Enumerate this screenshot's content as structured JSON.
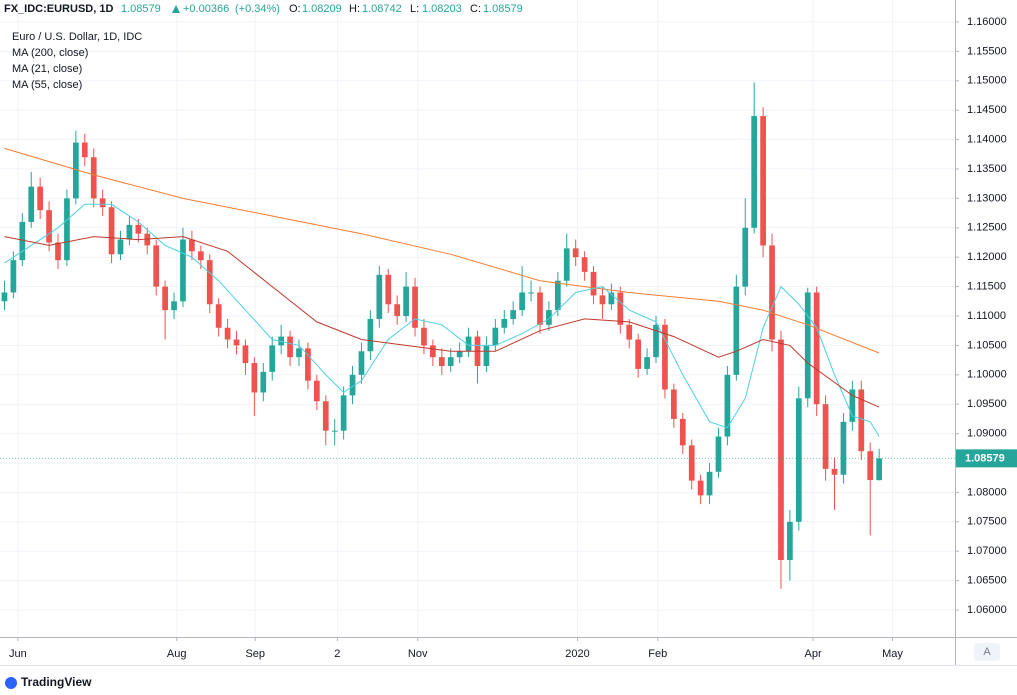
{
  "header": {
    "symbol": "FX_IDC:EURUSD, 1D",
    "last": "1.08579",
    "change": "+0.00366",
    "change_pct": "(+0.34%)",
    "open_label": "O:",
    "open": "1.08209",
    "high_label": "H:",
    "high": "1.08742",
    "low_label": "L:",
    "low": "1.08203",
    "close_label": "C:",
    "close": "1.08579"
  },
  "footer": {
    "brand": "TradingView",
    "scale_button": "A"
  },
  "chart_data": {
    "type": "candlestick",
    "legend_title": "Euro / U.S. Dollar, 1D, IDC",
    "up_color": "#26a69a",
    "down_color": "#ef5350",
    "grid": true,
    "last_price_label": "1.08579",
    "xlim": [
      -0.5,
      106.5
    ],
    "xticks": [
      {
        "value": 1.5,
        "label": "Jun"
      },
      {
        "value": 19.3,
        "label": "Aug"
      },
      {
        "value": 28.1,
        "label": "Sep"
      },
      {
        "value": 37.3,
        "label": "2"
      },
      {
        "value": 46.3,
        "label": "Nov"
      },
      {
        "value": 64.2,
        "label": "2020"
      },
      {
        "value": 73.2,
        "label": "Feb"
      },
      {
        "value": 90.6,
        "label": "Apr"
      },
      {
        "value": 99.5,
        "label": "May"
      }
    ],
    "ylim": [
      1.05541,
      1.16374
    ],
    "yticks": [
      {
        "value": 1.06,
        "label": "1.06000"
      },
      {
        "value": 1.065,
        "label": "1.06500"
      },
      {
        "value": 1.07,
        "label": "1.07000"
      },
      {
        "value": 1.075,
        "label": "1.07500"
      },
      {
        "value": 1.08,
        "label": "1.08000"
      },
      {
        "value": 1.085,
        "label": "1.08500"
      },
      {
        "value": 1.09,
        "label": "1.09000"
      },
      {
        "value": 1.095,
        "label": "1.09500"
      },
      {
        "value": 1.1,
        "label": "1.10000"
      },
      {
        "value": 1.105,
        "label": "1.10500"
      },
      {
        "value": 1.11,
        "label": "1.11000"
      },
      {
        "value": 1.115,
        "label": "1.11500"
      },
      {
        "value": 1.12,
        "label": "1.12000"
      },
      {
        "value": 1.125,
        "label": "1.12500"
      },
      {
        "value": 1.13,
        "label": "1.13000"
      },
      {
        "value": 1.135,
        "label": "1.13500"
      },
      {
        "value": 1.14,
        "label": "1.14000"
      },
      {
        "value": 1.145,
        "label": "1.14500"
      },
      {
        "value": 1.15,
        "label": "1.15000"
      },
      {
        "value": 1.155,
        "label": "1.15500"
      },
      {
        "value": 1.16,
        "label": "1.16000"
      }
    ],
    "candles": [
      [
        1.1125,
        1.116,
        1.111,
        1.114
      ],
      [
        1.114,
        1.121,
        1.113,
        1.1195
      ],
      [
        1.1195,
        1.1275,
        1.1185,
        1.126
      ],
      [
        1.126,
        1.1345,
        1.125,
        1.132
      ],
      [
        1.132,
        1.1335,
        1.1265,
        1.128
      ],
      [
        1.128,
        1.1295,
        1.121,
        1.1225
      ],
      [
        1.1225,
        1.124,
        1.118,
        1.1195
      ],
      [
        1.1195,
        1.1315,
        1.1185,
        1.13
      ],
      [
        1.13,
        1.1415,
        1.129,
        1.1395
      ],
      [
        1.1395,
        1.141,
        1.1355,
        1.137
      ],
      [
        1.137,
        1.1385,
        1.1285,
        1.13
      ],
      [
        1.13,
        1.1315,
        1.127,
        1.1285
      ],
      [
        1.1285,
        1.1295,
        1.119,
        1.1205
      ],
      [
        1.1205,
        1.1245,
        1.1195,
        1.123
      ],
      [
        1.123,
        1.127,
        1.122,
        1.1255
      ],
      [
        1.1255,
        1.1265,
        1.1225,
        1.124
      ],
      [
        1.124,
        1.125,
        1.1205,
        1.122
      ],
      [
        1.122,
        1.123,
        1.1135,
        1.115
      ],
      [
        1.115,
        1.116,
        1.106,
        1.111
      ],
      [
        1.111,
        1.114,
        1.1095,
        1.1125
      ],
      [
        1.1125,
        1.125,
        1.1115,
        1.123
      ],
      [
        1.123,
        1.1245,
        1.1195,
        1.121
      ],
      [
        1.121,
        1.122,
        1.118,
        1.1195
      ],
      [
        1.1195,
        1.1205,
        1.1105,
        1.112
      ],
      [
        1.112,
        1.113,
        1.1065,
        1.108
      ],
      [
        1.108,
        1.1095,
        1.1045,
        1.106
      ],
      [
        1.106,
        1.1075,
        1.1035,
        1.105
      ],
      [
        1.105,
        1.106,
        1.1,
        1.102
      ],
      [
        1.102,
        1.103,
        1.093,
        1.097
      ],
      [
        1.097,
        1.102,
        1.0955,
        1.1005
      ],
      [
        1.1005,
        1.1065,
        1.099,
        1.105
      ],
      [
        1.105,
        1.1085,
        1.1035,
        1.1065
      ],
      [
        1.1065,
        1.1075,
        1.1015,
        1.103
      ],
      [
        1.103,
        1.106,
        1.1015,
        1.1045
      ],
      [
        1.1045,
        1.1055,
        1.0975,
        1.099
      ],
      [
        1.099,
        1.1,
        1.094,
        1.0955
      ],
      [
        1.0955,
        1.0965,
        1.088,
        1.0905
      ],
      [
        1.0905,
        1.0925,
        1.088,
        1.0905
      ],
      [
        1.0905,
        1.098,
        1.089,
        1.0965
      ],
      [
        1.0965,
        1.1015,
        1.095,
        1.1
      ],
      [
        1.1,
        1.1055,
        1.0985,
        1.104
      ],
      [
        1.104,
        1.111,
        1.1025,
        1.1095
      ],
      [
        1.1095,
        1.1185,
        1.108,
        1.117
      ],
      [
        1.117,
        1.118,
        1.1105,
        1.112
      ],
      [
        1.112,
        1.1135,
        1.1085,
        1.11
      ],
      [
        1.11,
        1.1175,
        1.109,
        1.115
      ],
      [
        1.115,
        1.1165,
        1.1065,
        1.108
      ],
      [
        1.108,
        1.1095,
        1.1035,
        1.105
      ],
      [
        1.105,
        1.106,
        1.1015,
        1.103
      ],
      [
        1.103,
        1.1045,
        1.1,
        1.1015
      ],
      [
        1.1015,
        1.1045,
        1.1005,
        1.103
      ],
      [
        1.103,
        1.1055,
        1.102,
        1.104
      ],
      [
        1.104,
        1.108,
        1.103,
        1.1065
      ],
      [
        1.1065,
        1.1075,
        1.0985,
        1.1015
      ],
      [
        1.1015,
        1.1065,
        1.1005,
        1.105
      ],
      [
        1.105,
        1.1095,
        1.104,
        1.108
      ],
      [
        1.108,
        1.111,
        1.107,
        1.1095
      ],
      [
        1.1095,
        1.1125,
        1.1085,
        1.111
      ],
      [
        1.111,
        1.1185,
        1.11,
        1.114
      ],
      [
        1.114,
        1.116,
        1.1125,
        1.114
      ],
      [
        1.114,
        1.115,
        1.107,
        1.1085
      ],
      [
        1.1085,
        1.1125,
        1.1075,
        1.111
      ],
      [
        1.111,
        1.1175,
        1.11,
        1.116
      ],
      [
        1.116,
        1.124,
        1.115,
        1.1215
      ],
      [
        1.1215,
        1.123,
        1.1185,
        1.12
      ],
      [
        1.12,
        1.121,
        1.116,
        1.1175
      ],
      [
        1.1175,
        1.1185,
        1.112,
        1.1135
      ],
      [
        1.1135,
        1.115,
        1.1095,
        1.112
      ],
      [
        1.112,
        1.1155,
        1.111,
        1.114
      ],
      [
        1.114,
        1.115,
        1.107,
        1.1085
      ],
      [
        1.1085,
        1.1095,
        1.1045,
        1.106
      ],
      [
        1.106,
        1.107,
        1.0995,
        1.101
      ],
      [
        1.101,
        1.1045,
        1.1,
        1.103
      ],
      [
        1.103,
        1.11,
        1.102,
        1.1085
      ],
      [
        1.1085,
        1.1095,
        1.096,
        1.0975
      ],
      [
        1.0975,
        1.0985,
        1.091,
        1.0925
      ],
      [
        1.0925,
        1.0935,
        1.0865,
        1.088
      ],
      [
        1.088,
        1.089,
        1.0805,
        1.082
      ],
      [
        1.082,
        1.083,
        1.078,
        1.0795
      ],
      [
        1.0795,
        1.085,
        1.078,
        1.0835
      ],
      [
        1.0835,
        1.091,
        1.0825,
        1.0895
      ],
      [
        1.0895,
        1.1015,
        1.088,
        1.1
      ],
      [
        1.1,
        1.117,
        1.099,
        1.115
      ],
      [
        1.115,
        1.13,
        1.1135,
        1.125
      ],
      [
        1.125,
        1.1497,
        1.124,
        1.144
      ],
      [
        1.144,
        1.1455,
        1.12,
        1.122
      ],
      [
        1.122,
        1.124,
        1.104,
        1.106
      ],
      [
        1.106,
        1.1075,
        1.0636,
        1.0685
      ],
      [
        1.0685,
        1.077,
        1.065,
        1.075
      ],
      [
        1.075,
        1.098,
        1.0735,
        1.096
      ],
      [
        1.096,
        1.1148,
        1.0945,
        1.114
      ],
      [
        1.114,
        1.115,
        1.093,
        1.095
      ],
      [
        1.095,
        1.0965,
        1.082,
        1.084
      ],
      [
        1.084,
        1.086,
        1.077,
        1.083
      ],
      [
        1.083,
        1.0935,
        1.0815,
        1.092
      ],
      [
        1.092,
        1.099,
        1.0905,
        1.0975
      ],
      [
        1.0975,
        1.099,
        1.0855,
        1.087
      ],
      [
        1.087,
        1.0885,
        1.0727,
        1.0821
      ],
      [
        1.08209,
        1.08742,
        1.08203,
        1.08579
      ]
    ],
    "series": [
      {
        "name": "MA (200, close)",
        "color": "#f57c30",
        "x": [
          0,
          10,
          20,
          30,
          40,
          50,
          60,
          70,
          80,
          85,
          90,
          98
        ],
        "values": [
          1.1385,
          1.134,
          1.13,
          1.127,
          1.124,
          1.1205,
          1.116,
          1.114,
          1.1125,
          1.111,
          1.1085,
          1.1037
        ]
      },
      {
        "name": "MA (21, close)",
        "color": "#4dd0e1",
        "x": [
          0,
          3,
          6,
          9,
          12,
          15,
          18,
          21,
          24,
          27,
          30,
          33,
          36,
          38,
          40,
          43,
          46,
          49,
          52,
          55,
          58,
          61,
          64,
          67,
          70,
          73,
          76,
          79,
          81,
          83,
          85,
          87,
          89,
          91,
          93,
          95,
          97,
          98
        ],
        "values": [
          1.119,
          1.122,
          1.125,
          1.129,
          1.129,
          1.126,
          1.122,
          1.12,
          1.116,
          1.111,
          1.106,
          1.105,
          1.1,
          1.097,
          1.099,
          1.106,
          1.1095,
          1.1085,
          1.105,
          1.105,
          1.107,
          1.1095,
          1.114,
          1.115,
          1.111,
          1.109,
          1.1,
          1.092,
          1.091,
          1.096,
          1.108,
          1.115,
          1.112,
          1.108,
          1.1,
          1.093,
          1.092,
          1.0895
        ]
      },
      {
        "name": "MA (55, close)",
        "color": "#c0392b",
        "x": [
          0,
          5,
          10,
          15,
          20,
          25,
          30,
          35,
          40,
          45,
          50,
          55,
          60,
          65,
          70,
          75,
          80,
          82,
          85,
          88,
          90,
          95,
          98
        ],
        "values": [
          1.1235,
          1.122,
          1.1235,
          1.123,
          1.1235,
          1.121,
          1.115,
          1.109,
          1.106,
          1.105,
          1.104,
          1.104,
          1.1075,
          1.1095,
          1.109,
          1.1065,
          1.103,
          1.104,
          1.106,
          1.105,
          1.102,
          1.0965,
          1.0945
        ]
      }
    ]
  }
}
